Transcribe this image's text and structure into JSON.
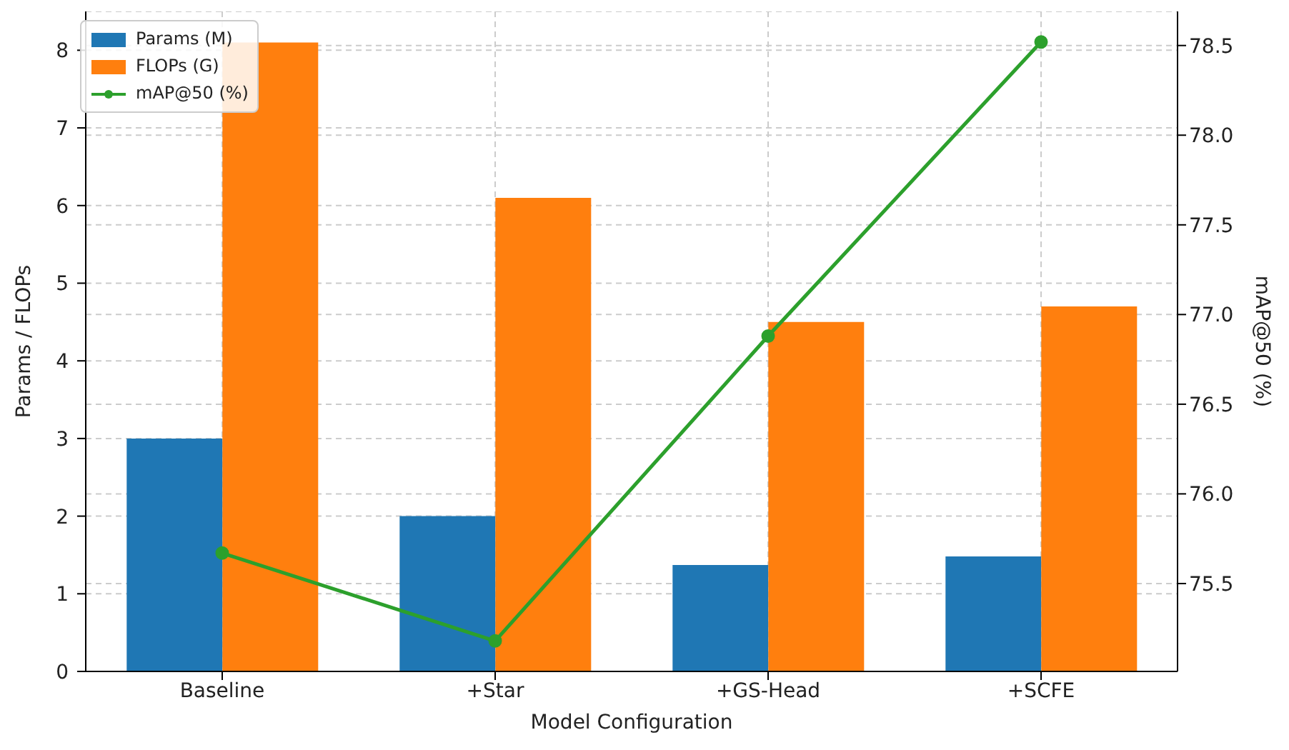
{
  "chart_data": {
    "type": "bar",
    "xlabel": "Model Configuration",
    "ylabel": "Params / FLOPs",
    "y2label": "mAP@50 (%)",
    "categories": [
      "Baseline",
      "+Star",
      "+GS-Head",
      "+SCFE"
    ],
    "series": [
      {
        "name": "Params (M)",
        "color": "#1f77b4",
        "values": [
          3.0,
          2.0,
          1.37,
          1.48
        ]
      },
      {
        "name": "FLOPs (G)",
        "color": "#ff7f0e",
        "values": [
          8.1,
          6.1,
          4.5,
          4.7
        ]
      },
      {
        "name": "mAP@50 (%)",
        "type": "line",
        "axis": "y2",
        "color": "#2ca02c",
        "values": [
          75.67,
          75.18,
          76.88,
          78.52
        ]
      }
    ],
    "ylim": [
      0,
      8.5
    ],
    "yticks": [
      0,
      1,
      2,
      3,
      4,
      5,
      6,
      7,
      8
    ],
    "y2lim": [
      75.01,
      78.69
    ],
    "y2ticks": [
      {
        "value": 75.5,
        "label": "75.5"
      },
      {
        "value": 76,
        "label": "76.0"
      },
      {
        "value": 76.5,
        "label": "76.5"
      },
      {
        "value": 77,
        "label": "77.0"
      },
      {
        "value": 77.5,
        "label": "77.5"
      },
      {
        "value": 78,
        "label": "78.0"
      },
      {
        "value": 78.5,
        "label": "78.5"
      }
    ],
    "grid": true,
    "legend": "top left",
    "marker": "circle",
    "line_style": "solid"
  }
}
